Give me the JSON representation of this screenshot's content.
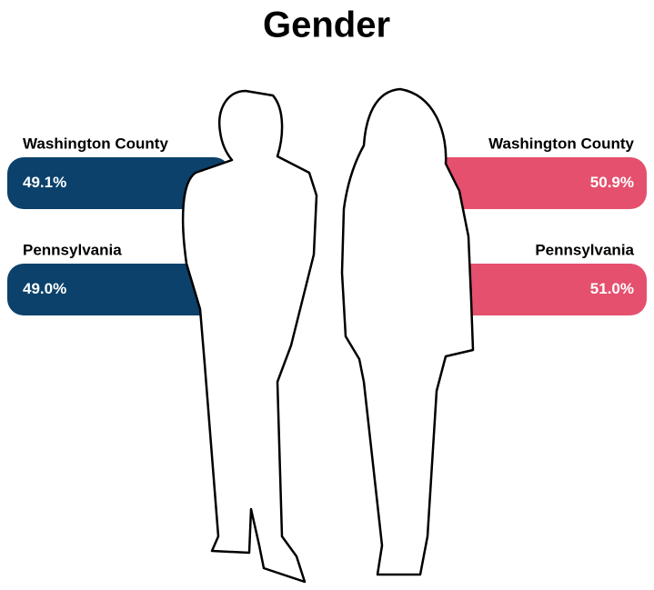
{
  "chart_data": {
    "type": "bar",
    "title": "Gender",
    "categories": [
      "Washington County",
      "Pennsylvania"
    ],
    "series": [
      {
        "color": "#0b416b",
        "values": [
          49.1,
          49.0
        ],
        "value_labels": [
          "49.1%",
          "49.0%"
        ]
      },
      {
        "color": "#e5506e",
        "values": [
          50.9,
          51.0
        ],
        "value_labels": [
          "50.9%",
          "51.0%"
        ]
      }
    ]
  }
}
